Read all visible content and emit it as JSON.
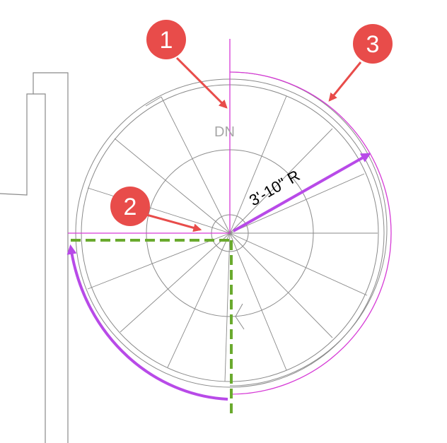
{
  "labels": {
    "direction": "DN",
    "radius": "3'-10\" R"
  },
  "callouts": [
    {
      "number": "1"
    },
    {
      "number": "2"
    },
    {
      "number": "3"
    }
  ],
  "colors": {
    "callout_fill": "#e84c4a",
    "callout_arrow": "#e84c4a",
    "magenta_line": "#d63ad6",
    "radius_arrow": "#b84ae8",
    "travel_arc": "#b84ae8",
    "dashed_lines": "#6aaa2e",
    "stair_lines": "#8a8a8a"
  }
}
